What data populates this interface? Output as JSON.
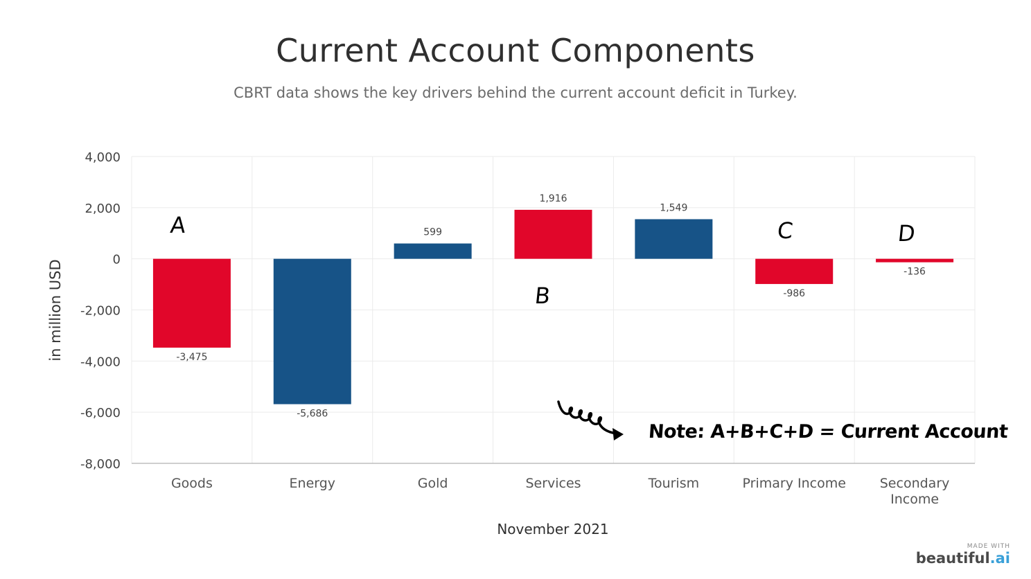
{
  "title": "Current Account Components",
  "subtitle": "CBRT data shows the key drivers behind the current account deficit in Turkey.",
  "chart_data": {
    "type": "bar",
    "categories": [
      "Goods",
      "Energy",
      "Gold",
      "Services",
      "Tourism",
      "Primary Income",
      "Secondary Income"
    ],
    "values": [
      -3475,
      -5686,
      599,
      1916,
      1549,
      -986,
      -136
    ],
    "value_labels": [
      "-3,475",
      "-5,686",
      "599",
      "1,916",
      "1,549",
      "-986",
      "-136"
    ],
    "bar_colors": [
      "#e1062a",
      "#175387",
      "#175387",
      "#e1062a",
      "#175387",
      "#e1062a",
      "#e1062a"
    ],
    "ylim": [
      -8000,
      4000
    ],
    "yticks": [
      4000,
      2000,
      0,
      -2000,
      -4000,
      -6000,
      -8000
    ],
    "ytick_labels": [
      "4,000",
      "2,000",
      "0",
      "-2,000",
      "-4,000",
      "-6,000",
      "-8,000"
    ],
    "ylabel": "in million USD",
    "xlabel": "November 2021",
    "grid": true
  },
  "annotations": {
    "letters": [
      "A",
      "B",
      "C",
      "D"
    ],
    "note": "Note: A+B+C+D = Current Account"
  },
  "branding": {
    "made_with": "MADE WITH",
    "brand_main": "beautiful",
    "brand_ai": ".ai"
  }
}
